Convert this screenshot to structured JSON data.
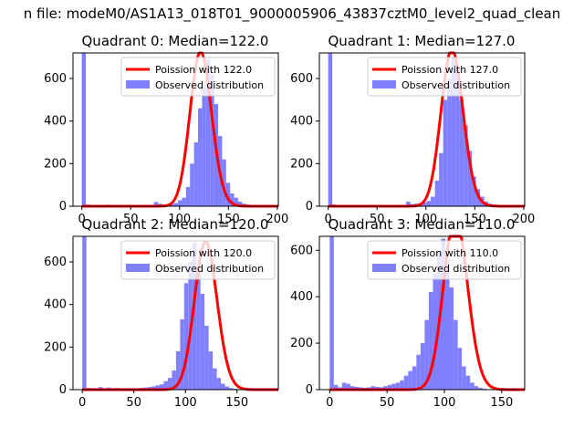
{
  "suptitle": "n file: modeM0/AS1A13_018T01_9000005906_43837cztM0_level2_quad_clean",
  "colors": {
    "hist": "#8080ff",
    "poisson": "#ff0000",
    "axis": "#000000"
  },
  "chart_data": [
    {
      "type": "bar",
      "title": "Quadrant 0: Median=122.0",
      "xlim": [
        -9,
        201
      ],
      "ylim": [
        0,
        720
      ],
      "xticks": [
        0,
        50,
        100,
        150,
        200
      ],
      "yticks": [
        0,
        200,
        400,
        600
      ],
      "x_tick_labels": [
        "0",
        "50",
        "100",
        "150",
        "200"
      ],
      "y_tick_labels": [
        "0",
        "200",
        "400",
        "600"
      ],
      "bin_width": 4.1,
      "bin_start": 0,
      "values": [
        720,
        8,
        5,
        6,
        5,
        3,
        7,
        4,
        6,
        5,
        4,
        3,
        5,
        4,
        5,
        4,
        6,
        5,
        20,
        12,
        8,
        10,
        10,
        15,
        28,
        40,
        90,
        200,
        300,
        460,
        560,
        690,
        620,
        480,
        330,
        220,
        110,
        60,
        40,
        22,
        12,
        8,
        4,
        2,
        1,
        1,
        1
      ],
      "series": [
        {
          "name": "Poission with 122.0",
          "kind": "line",
          "mean": 122.0
        },
        {
          "name": "Observed distribution",
          "kind": "histogram"
        }
      ],
      "legend": "upper right"
    },
    {
      "type": "bar",
      "title": "Quadrant 1: Median=127.0",
      "xlim": [
        -9,
        201
      ],
      "ylim": [
        0,
        720
      ],
      "xticks": [
        0,
        50,
        100,
        150,
        200
      ],
      "yticks": [
        0,
        200,
        400,
        600
      ],
      "x_tick_labels": [
        "0",
        "50",
        "100",
        "150",
        "200"
      ],
      "y_tick_labels": [
        "0",
        "200",
        "400",
        "600"
      ],
      "bin_width": 4.2,
      "bin_start": 0,
      "values": [
        720,
        8,
        5,
        6,
        4,
        3,
        6,
        4,
        5,
        4,
        3,
        4,
        3,
        4,
        4,
        5,
        6,
        5,
        4,
        22,
        10,
        12,
        15,
        18,
        25,
        45,
        120,
        250,
        500,
        600,
        700,
        640,
        500,
        380,
        260,
        140,
        80,
        45,
        22,
        12,
        8,
        5,
        3,
        2,
        1,
        1
      ],
      "series": [
        {
          "name": "Poission with 127.0",
          "kind": "line",
          "mean": 127.0
        },
        {
          "name": "Observed distribution",
          "kind": "histogram"
        }
      ],
      "legend": "upper right"
    },
    {
      "type": "bar",
      "title": "Quadrant 2: Median=120.0",
      "xlim": [
        -9,
        190
      ],
      "ylim": [
        0,
        720
      ],
      "xticks": [
        0,
        50,
        100,
        150
      ],
      "yticks": [
        0,
        200,
        400,
        600
      ],
      "x_tick_labels": [
        "0",
        "50",
        "100",
        "150"
      ],
      "y_tick_labels": [
        "0",
        "200",
        "400",
        "600"
      ],
      "bin_width": 3.95,
      "bin_start": 0,
      "values": [
        720,
        8,
        5,
        6,
        12,
        4,
        10,
        5,
        8,
        6,
        5,
        4,
        5,
        6,
        8,
        10,
        12,
        15,
        20,
        25,
        40,
        55,
        90,
        180,
        330,
        500,
        600,
        690,
        560,
        450,
        300,
        180,
        100,
        55,
        28,
        15,
        8,
        4,
        2,
        1,
        1,
        1,
        1
      ],
      "series": [
        {
          "name": "Poission with 120.0",
          "kind": "line",
          "mean": 120.0
        },
        {
          "name": "Observed distribution",
          "kind": "histogram"
        }
      ],
      "legend": "upper right"
    },
    {
      "type": "bar",
      "title": "Quadrant 3: Median=110.0",
      "xlim": [
        -9,
        170
      ],
      "ylim": [
        0,
        660
      ],
      "xticks": [
        0,
        50,
        100,
        150
      ],
      "yticks": [
        0,
        200,
        400,
        600
      ],
      "x_tick_labels": [
        "0",
        "50",
        "100",
        "150"
      ],
      "y_tick_labels": [
        "0",
        "200",
        "400",
        "600"
      ],
      "bin_width": 3.6,
      "bin_start": 0,
      "values": [
        660,
        20,
        10,
        30,
        25,
        15,
        12,
        10,
        8,
        10,
        15,
        12,
        10,
        15,
        20,
        25,
        30,
        40,
        60,
        80,
        100,
        150,
        200,
        300,
        420,
        500,
        600,
        650,
        560,
        440,
        300,
        180,
        100,
        60,
        30,
        15,
        8,
        4,
        2,
        1,
        1,
        1
      ],
      "series": [
        {
          "name": "Poission with 110.0",
          "kind": "line",
          "mean": 110.0
        },
        {
          "name": "Observed distribution",
          "kind": "histogram"
        }
      ],
      "legend": "upper right"
    }
  ]
}
